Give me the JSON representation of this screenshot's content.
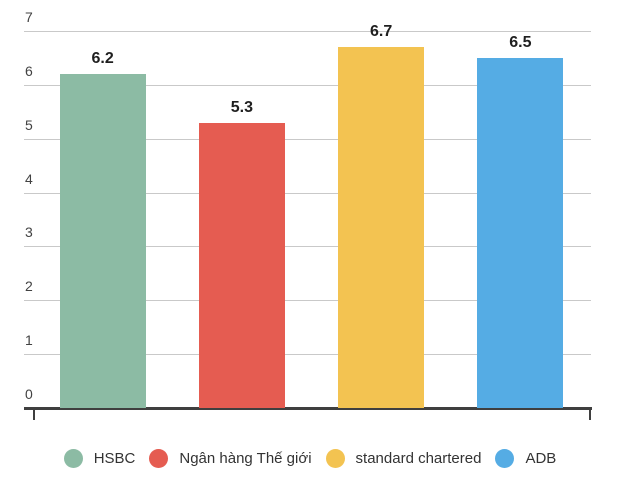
{
  "chart_data": {
    "type": "bar",
    "title": "",
    "xlabel": "",
    "ylabel": "",
    "categories": [
      "HSBC",
      "Ngân hàng Thế giới",
      "standard chartered",
      "ADB"
    ],
    "values": [
      6.2,
      5.3,
      6.7,
      6.5
    ],
    "value_labels": [
      "6.2",
      "5.3",
      "6.7",
      "6.5"
    ],
    "bar_colors": [
      "#8cbba4",
      "#e55c51",
      "#f3c351",
      "#55ace4"
    ],
    "ylim": [
      0,
      7
    ],
    "yticks": [
      0,
      1,
      2,
      3,
      4,
      5,
      6,
      7
    ],
    "grid": true,
    "legend_position": "bottom",
    "legend": [
      {
        "label": "HSBC",
        "color": "#8cbba4"
      },
      {
        "label": "Ngân hàng Thế giới",
        "color": "#e55c51"
      },
      {
        "label": "standard chartered",
        "color": "#f3c351"
      },
      {
        "label": "ADB",
        "color": "#55ace4"
      }
    ]
  },
  "theme": {
    "background": "#ffffff",
    "gridline_color": "#c9c9c9",
    "axis_color": "#3f3f3f",
    "tick_label_color": "#424242",
    "value_label_color": "#1f1f1f",
    "legend_text_color": "#333333"
  }
}
